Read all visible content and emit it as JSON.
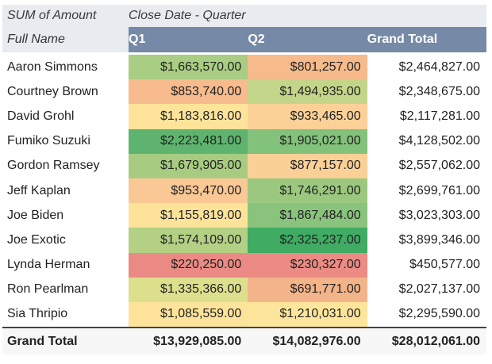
{
  "pivot": {
    "corner_label": "SUM of Amount",
    "column_field_label": "Close Date - Quarter",
    "row_field_label": "Full Name",
    "columns": [
      "Q1",
      "Q2",
      "Grand Total"
    ],
    "rows": [
      {
        "name": "Aaron Simmons",
        "q1": "$1,663,570.00",
        "q2": "$801,257.00",
        "total": "$2,464,827.00",
        "q1_color": "#a9cd82",
        "q2_color": "#f6ba8b"
      },
      {
        "name": "Courtney Brown",
        "q1": "$853,740.00",
        "q2": "$1,494,935.00",
        "total": "$2,348,675.00",
        "q1_color": "#f7bb8d",
        "q2_color": "#c2d588"
      },
      {
        "name": "David Grohl",
        "q1": "$1,183,816.00",
        "q2": "$933,465.00",
        "total": "$2,117,281.00",
        "q1_color": "#fde49a",
        "q2_color": "#fbd197"
      },
      {
        "name": "Fumiko Suzuki",
        "q1": "$2,223,481.00",
        "q2": "$1,905,021.00",
        "total": "$4,128,502.00",
        "q1_color": "#5eb46e",
        "q2_color": "#83c27b"
      },
      {
        "name": "Gordon Ramsey",
        "q1": "$1,679,905.00",
        "q2": "$877,157.00",
        "total": "$2,557,062.00",
        "q1_color": "#a7cc81",
        "q2_color": "#fbd097"
      },
      {
        "name": "Jeff Kaplan",
        "q1": "$953,470.00",
        "q2": "$1,746,291.00",
        "total": "$2,699,761.00",
        "q1_color": "#f9c894",
        "q2_color": "#9bc87f"
      },
      {
        "name": "Joe Biden",
        "q1": "$1,155,819.00",
        "q2": "$1,867,484.00",
        "total": "$3,023,303.00",
        "q1_color": "#fde39a",
        "q2_color": "#8ac47c"
      },
      {
        "name": "Joe Exotic",
        "q1": "$1,574,109.00",
        "q2": "$2,325,237.00",
        "total": "$3,899,346.00",
        "q1_color": "#b3d084",
        "q2_color": "#3fab63"
      },
      {
        "name": "Lynda Herman",
        "q1": "$220,250.00",
        "q2": "$230,327.00",
        "total": "$450,577.00",
        "q1_color": "#eb8a84",
        "q2_color": "#eb8b84"
      },
      {
        "name": "Ron Pearlman",
        "q1": "$1,335,366.00",
        "q2": "$691,771.00",
        "total": "$2,027,137.00",
        "q1_color": "#dcdf8c",
        "q2_color": "#f4b48a"
      },
      {
        "name": "Sia Thripio",
        "q1": "$1,085,559.00",
        "q2": "$1,210,031.00",
        "total": "$2,295,590.00",
        "q1_color": "#fde49a",
        "q2_color": "#fde69b"
      }
    ],
    "grand_total": {
      "label": "Grand Total",
      "q1": "$13,929,085.00",
      "q2": "$14,082,976.00",
      "total": "$28,012,061.00"
    }
  }
}
